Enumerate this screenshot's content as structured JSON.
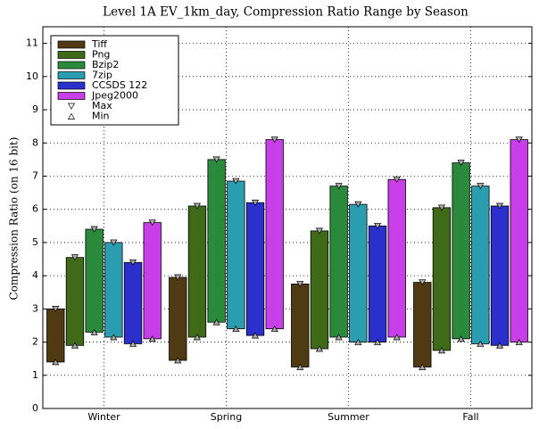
{
  "chart_data": {
    "type": "range-bar",
    "title": "Level 1A EV_1km_day, Compression Ratio Range by Season",
    "y_label": "Compression Ratio (on 16 bit)",
    "categories": [
      "Winter",
      "Spring",
      "Summer",
      "Fall"
    ],
    "series": [
      {
        "name": "Tiff",
        "color": "#4f3a14",
        "min": [
          1.4,
          1.45,
          1.25,
          1.25
        ],
        "max": [
          3.0,
          3.95,
          3.75,
          3.8
        ]
      },
      {
        "name": "Png",
        "color": "#3f6a17",
        "min": [
          1.9,
          2.15,
          1.8,
          1.75
        ],
        "max": [
          4.55,
          6.1,
          5.35,
          6.05
        ]
      },
      {
        "name": "Bzip2",
        "color": "#2a8a3c",
        "min": [
          2.3,
          2.6,
          2.15,
          2.1
        ],
        "max": [
          5.4,
          7.5,
          6.7,
          7.4
        ]
      },
      {
        "name": "7zip",
        "color": "#2a9eb0",
        "min": [
          2.15,
          2.4,
          2.0,
          1.95
        ],
        "max": [
          5.0,
          6.85,
          6.15,
          6.7
        ]
      },
      {
        "name": "CCSDS 122",
        "color": "#2b2fcc",
        "min": [
          1.95,
          2.2,
          2.0,
          1.9
        ],
        "max": [
          4.4,
          6.2,
          5.5,
          6.1
        ]
      },
      {
        "name": "Jpeg2000",
        "color": "#c83ee8",
        "min": [
          2.1,
          2.4,
          2.15,
          2.0
        ],
        "max": [
          5.6,
          8.1,
          6.9,
          8.1
        ]
      }
    ],
    "max_label": "Max",
    "min_label": "Min",
    "ylim": [
      0,
      11.5
    ],
    "yticks": [
      0,
      1,
      2,
      3,
      4,
      5,
      6,
      7,
      8,
      9,
      10,
      11
    ],
    "grid": true,
    "legend": "upper left"
  }
}
